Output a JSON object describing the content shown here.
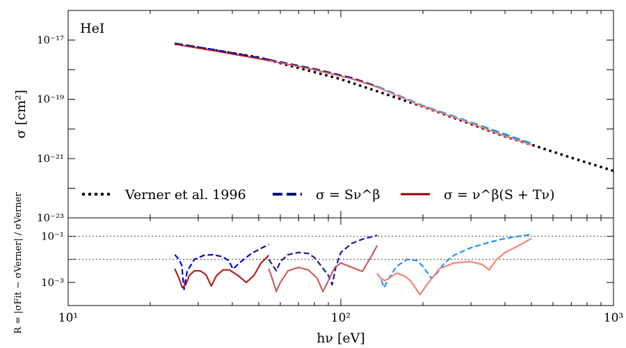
{
  "chart_data": {
    "type": "line",
    "xaxis": {
      "label": "hν  [eV]",
      "scale": "log",
      "range": [
        10,
        1000
      ],
      "ticks": [
        {
          "value": 10,
          "label": "10¹"
        },
        {
          "value": 100,
          "label": "10²"
        },
        {
          "value": 1000,
          "label": "10³"
        }
      ]
    },
    "top_panel": {
      "label": "HeI",
      "ylabel": "σ  [cm²]",
      "yscale": "log",
      "ylim": [
        1e-23,
        1e-16
      ],
      "yticks": [
        {
          "value": 1e-17,
          "label": "10⁻¹⁷"
        },
        {
          "value": 1e-19,
          "label": "10⁻¹⁹"
        },
        {
          "value": 1e-21,
          "label": "10⁻²¹"
        },
        {
          "value": 1e-23,
          "label": "10⁻²³"
        }
      ],
      "legend": {
        "position": "bottom",
        "entries": [
          {
            "label": "Verner et al. 1996",
            "style": "dotted",
            "color": "#000000"
          },
          {
            "label": "σ = Sν^β",
            "style": "dashed",
            "color": "#00008b"
          },
          {
            "label": "σ = ν^β(S + Tν)",
            "style": "solid",
            "color": "#8b0000"
          }
        ]
      },
      "series": [
        {
          "name": "Verner et al. 1996",
          "style": "dotted",
          "color": "#000000",
          "width": 3.5,
          "x": [
            24.6,
            50,
            100,
            200,
            400,
            500,
            700,
            1000
          ],
          "y": [
            7.5e-18,
            2.6e-18,
            4.8e-19,
            5.7e-20,
            5.6e-21,
            2.95e-21,
            1.07e-21,
            3.85e-22
          ]
        },
        {
          "name": "σ = Sν^β (range 1)",
          "style": "dashed",
          "color": "#0000cd",
          "width": 3,
          "x": [
            24.6,
            35,
            50,
            54.4
          ],
          "y": [
            7.6e-18,
            4.5e-18,
            2.5e-18,
            2.15e-18
          ]
        },
        {
          "name": "σ = Sν^β (range 2)",
          "style": "dashed",
          "color": "#1a1aa0",
          "width": 3,
          "x": [
            54.4,
            80,
            110,
            136
          ],
          "y": [
            2.15e-18,
            1.05e-18,
            5.2e-19,
            2.7e-19
          ]
        },
        {
          "name": "σ = Sν^β (range 3)",
          "style": "dashed",
          "color": "#1e90ff",
          "width": 3,
          "x": [
            136,
            200,
            300,
            400,
            500
          ],
          "y": [
            2.7e-19,
            6e-20,
            1.65e-20,
            6.6e-21,
            3.2e-21
          ]
        },
        {
          "name": "σ = ν^β(S + Tν) (range 1)",
          "style": "solid",
          "color": "#b22222",
          "width": 2,
          "x": [
            24.6,
            35,
            50,
            54.4
          ],
          "y": [
            7.3e-18,
            4.2e-18,
            2.35e-18,
            2.05e-18
          ]
        },
        {
          "name": "σ = ν^β(S + Tν) (range 2)",
          "style": "solid",
          "color": "#cd5c5c",
          "width": 2,
          "x": [
            54.4,
            80,
            110,
            136
          ],
          "y": [
            2.05e-18,
            1e-18,
            4.9e-19,
            2.6e-19
          ]
        },
        {
          "name": "σ = ν^β(S + Tν) (range 3)",
          "style": "solid",
          "color": "#fa8072",
          "width": 2,
          "x": [
            136,
            200,
            300,
            400,
            500
          ],
          "y": [
            2.55e-19,
            5.7e-20,
            1.55e-20,
            5.7e-21,
            2.9e-21
          ]
        }
      ]
    },
    "bottom_panel": {
      "ylabel": "R = |σFit − σVerner| / σVerner",
      "yscale": "log",
      "ylim": [
        0.0001,
        0.63
      ],
      "yticks": [
        {
          "value": 0.1,
          "label": "10⁻¹"
        },
        {
          "value": 0.001,
          "label": "10⁻³"
        }
      ],
      "reference_lines": [
        0.1,
        0.01
      ],
      "series": [
        {
          "name": "Sν^β residual (range 1)",
          "style": "dashed",
          "color": "#0000cd",
          "x": [
            24.6,
            25.5,
            26.1,
            26.6,
            27.3,
            29,
            31.5,
            34,
            36.8,
            38.8,
            40.2,
            43,
            47,
            51,
            54.4
          ],
          "y": [
            0.016,
            0.01,
            0.0055,
            0.0005,
            0.003,
            0.01,
            0.015,
            0.016,
            0.013,
            0.009,
            0.0038,
            0.008,
            0.018,
            0.03,
            0.045
          ]
        },
        {
          "name": "Sν^β residual (range 2)",
          "style": "dashed",
          "color": "#1a1aa0",
          "x": [
            54.4,
            56,
            58,
            60,
            64,
            70,
            76,
            80,
            85,
            90,
            93,
            96,
            100,
            110,
            120,
            136
          ],
          "y": [
            0.01,
            0.006,
            0.0032,
            0.008,
            0.016,
            0.02,
            0.018,
            0.012,
            0.005,
            0.002,
            0.0008,
            0.005,
            0.02,
            0.05,
            0.075,
            0.11
          ]
        },
        {
          "name": "Sν^β residual (range 3)",
          "style": "dashed",
          "color": "#1e90ff",
          "x": [
            136,
            140,
            144,
            150,
            160,
            175,
            190,
            200,
            215,
            225,
            240,
            260,
            300,
            350,
            400,
            450,
            500
          ],
          "y": [
            0.0025,
            0.0015,
            0.0006,
            0.0015,
            0.005,
            0.01,
            0.009,
            0.005,
            0.0015,
            0.0025,
            0.007,
            0.015,
            0.032,
            0.055,
            0.08,
            0.1,
            0.12
          ]
        },
        {
          "name": "ν^β(S+Tν) residual (range 1)",
          "style": "solid",
          "color": "#b22222",
          "x": [
            24.6,
            25.5,
            26.2,
            27,
            27.8,
            29,
            30.5,
            32,
            33.5,
            35,
            37,
            39,
            42,
            45,
            48,
            51,
            54.4
          ],
          "y": [
            0.004,
            0.0015,
            0.0006,
            0.0008,
            0.002,
            0.0032,
            0.0032,
            0.0022,
            0.0007,
            0.002,
            0.0035,
            0.0035,
            0.002,
            0.001,
            0.002,
            0.007,
            0.015
          ]
        },
        {
          "name": "ν^β(S+Tν) residual (range 2)",
          "style": "solid",
          "color": "#cd5c5c",
          "x": [
            54.4,
            56,
            58,
            60,
            64,
            70,
            76,
            82,
            86,
            90,
            95,
            100,
            110,
            120,
            130,
            136
          ],
          "y": [
            0.004,
            0.0015,
            0.0004,
            0.001,
            0.0032,
            0.0045,
            0.0035,
            0.0015,
            0.0004,
            0.0012,
            0.0045,
            0.007,
            0.0045,
            0.003,
            0.015,
            0.04
          ]
        },
        {
          "name": "ν^β(S+Tν) residual (range 3)",
          "style": "solid",
          "color": "#fa8072",
          "x": [
            136,
            140,
            145,
            150,
            160,
            170,
            180,
            195,
            210,
            230,
            260,
            300,
            330,
            350,
            370,
            400,
            450,
            500
          ],
          "y": [
            0.0025,
            0.0015,
            0.0012,
            0.0015,
            0.0025,
            0.002,
            0.0012,
            0.0003,
            0.001,
            0.004,
            0.007,
            0.008,
            0.006,
            0.0035,
            0.009,
            0.02,
            0.04,
            0.08
          ]
        }
      ]
    }
  }
}
